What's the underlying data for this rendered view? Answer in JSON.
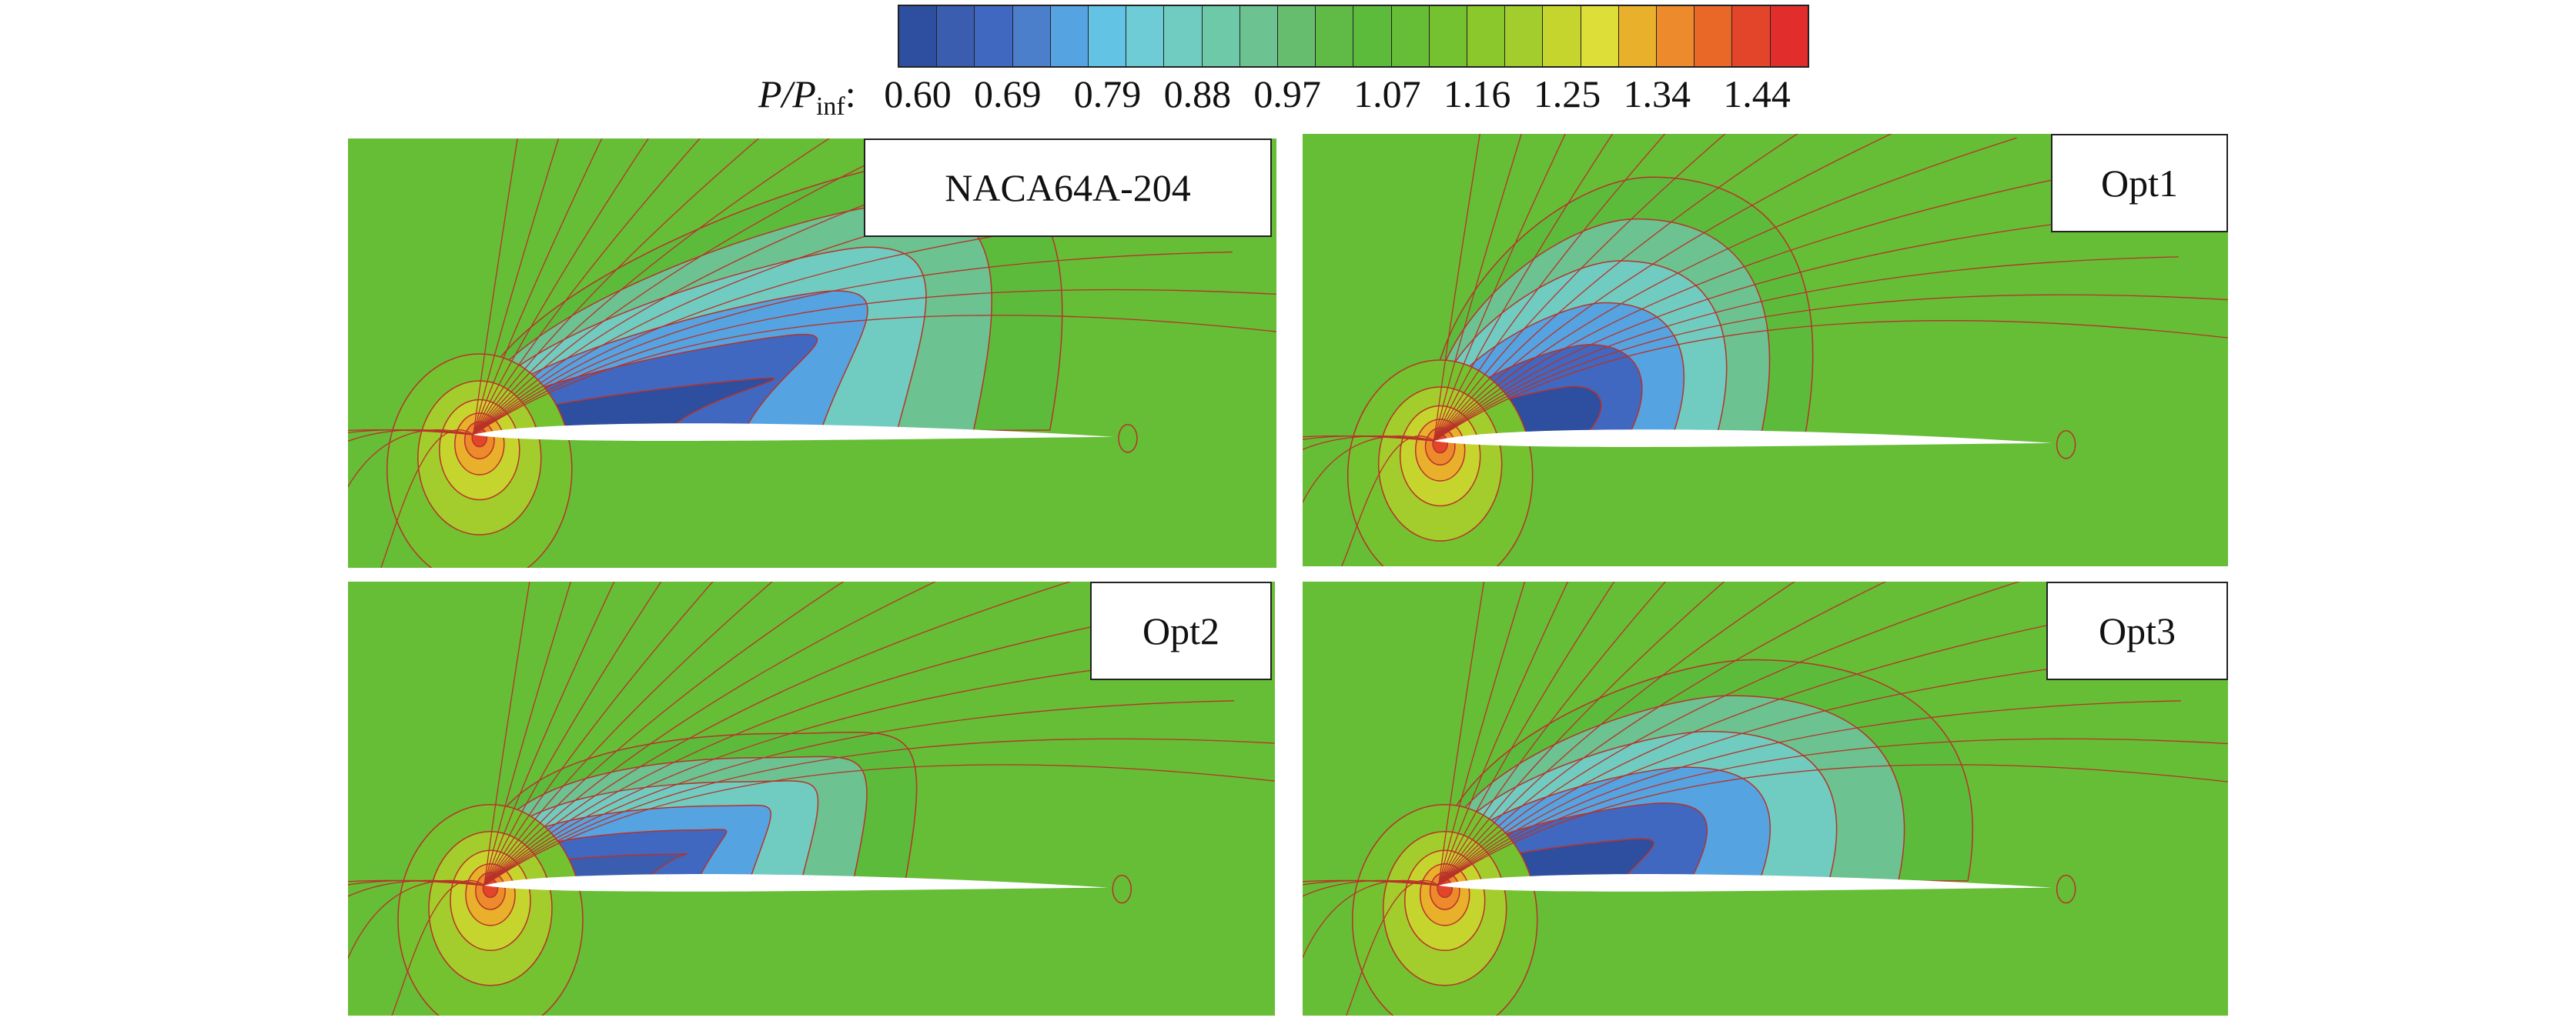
{
  "chart_data": {
    "type": "heatmap",
    "colorbar": {
      "variable": "P/P",
      "variable_subscript": "inf",
      "separator": ":",
      "tick_labels": [
        "0.60",
        "0.69",
        "0.79",
        "0.88",
        "0.97",
        "1.07",
        "1.16",
        "1.25",
        "1.34",
        "1.44"
      ],
      "tick_values": [
        0.6,
        0.69,
        0.79,
        0.88,
        0.97,
        1.07,
        1.16,
        1.25,
        1.34,
        1.44
      ],
      "colors": [
        "#2e4ea0",
        "#3a5db0",
        "#4068c0",
        "#4b7fcc",
        "#55a3e0",
        "#63c3e4",
        "#6dccd6",
        "#70ccc0",
        "#6ec9a8",
        "#6cc290",
        "#66bd6e",
        "#5fba46",
        "#5dbb3c",
        "#66bd36",
        "#74c230",
        "#8ac82c",
        "#a3cd2c",
        "#c6d52e",
        "#dede38",
        "#e9b02c",
        "#ec8a2c",
        "#e96828",
        "#e3452a",
        "#e12d2c"
      ]
    },
    "panels": [
      {
        "label": "NACA64A-204",
        "lowest_contour_level": 0.6
      },
      {
        "label": "Opt1",
        "lowest_contour_level": 0.6
      },
      {
        "label": "Opt2",
        "lowest_contour_level": 0.65
      },
      {
        "label": "Opt3",
        "lowest_contour_level": 0.6
      }
    ]
  }
}
